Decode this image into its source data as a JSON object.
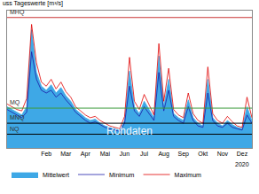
{
  "chart_data": {
    "type": "area",
    "title": "uss Tageswerte [m³/s]",
    "categories": [
      null,
      null,
      null,
      null,
      null,
      null,
      null,
      null,
      "Feb",
      null,
      null,
      null,
      "Mar",
      null,
      null,
      null,
      "Apr",
      null,
      null,
      null,
      "Mai",
      null,
      null,
      null,
      "Jun",
      null,
      null,
      null,
      "Jul",
      null,
      null,
      null,
      "Aug",
      null,
      null,
      null,
      "Sep",
      null,
      null,
      null,
      "Okt",
      null,
      null,
      null,
      "Nov",
      null,
      null,
      null,
      "Dez",
      null,
      null
    ],
    "series": [
      {
        "name": "Mittelwert",
        "type": "area",
        "color": "#3ea8e6",
        "values": [
          30,
          28,
          26,
          24,
          30,
          86,
          55,
          45,
          42,
          46,
          40,
          44,
          38,
          34,
          28,
          25,
          22,
          20,
          21,
          18,
          16,
          15,
          14,
          13,
          20,
          56,
          30,
          25,
          34,
          28,
          22,
          67,
          30,
          50,
          25,
          22,
          20,
          35,
          22,
          18,
          16,
          50,
          22,
          18,
          16,
          20,
          17,
          15,
          14,
          30,
          20
        ]
      },
      {
        "name": "Minimum",
        "type": "line",
        "color": "#1c1ca8",
        "values": [
          28,
          26,
          24,
          22,
          26,
          70,
          50,
          42,
          40,
          42,
          37,
          40,
          35,
          31,
          26,
          23,
          20,
          18,
          19,
          17,
          15,
          14,
          13,
          12,
          18,
          45,
          27,
          23,
          30,
          25,
          20,
          55,
          27,
          42,
          23,
          20,
          18,
          30,
          20,
          16,
          15,
          40,
          20,
          16,
          15,
          18,
          15,
          14,
          13,
          24,
          18
        ]
      },
      {
        "name": "Maximum",
        "type": "line",
        "color": "#e00000",
        "values": [
          32,
          30,
          28,
          27,
          36,
          90,
          62,
          48,
          45,
          50,
          43,
          48,
          41,
          37,
          30,
          27,
          24,
          22,
          23,
          20,
          18,
          16,
          15,
          14,
          23,
          66,
          34,
          28,
          39,
          31,
          24,
          76,
          34,
          58,
          28,
          24,
          22,
          40,
          25,
          20,
          18,
          59,
          25,
          20,
          18,
          23,
          19,
          16,
          15,
          37,
          22
        ]
      }
    ],
    "thresholds": [
      {
        "label": "MHQ",
        "value": 95,
        "color": "#c83232"
      },
      {
        "label": "MQ",
        "value": 29,
        "color": "#3c9c3c"
      },
      {
        "label": "MNQ",
        "value": 18,
        "color": "#000000"
      },
      {
        "label": "NQ",
        "value": 10,
        "color": "#000000"
      }
    ],
    "annotations": [
      {
        "text": "Rohdaten"
      },
      {
        "text": "2020",
        "at": "Dez"
      }
    ],
    "ylim": [
      0,
      100
    ],
    "tick_labels": "x",
    "grid": false,
    "legend": "bottom"
  }
}
